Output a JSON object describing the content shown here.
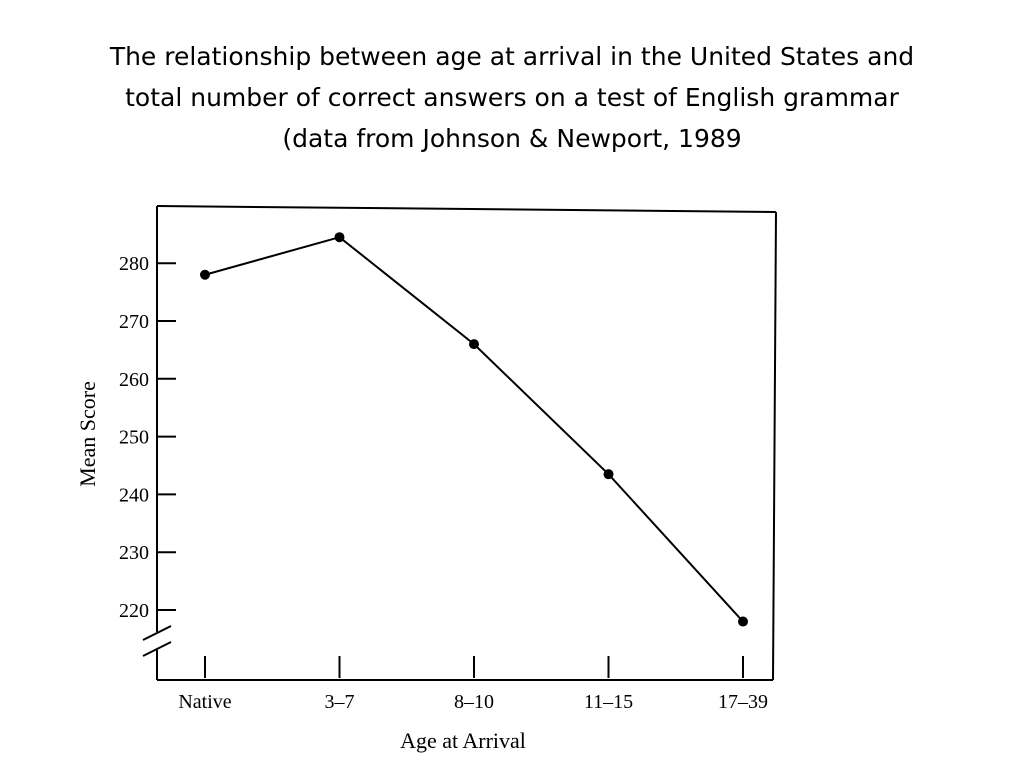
{
  "slide": {
    "title_lines": [
      "The relationship between age at arrival in the United States and",
      "total number of correct answers on a test of English grammar",
      "(data from Johnson & Newport, 1989"
    ]
  },
  "chart_data": {
    "type": "line",
    "title": "",
    "xlabel": "Age at Arrival",
    "ylabel": "Mean Score",
    "categories": [
      "Native",
      "3–7",
      "8–10",
      "11–15",
      "17–39"
    ],
    "values": [
      278,
      284.5,
      266,
      243.5,
      218
    ],
    "ylim": [
      210,
      290
    ],
    "yticks": [
      220,
      230,
      240,
      250,
      260,
      270,
      280
    ],
    "y_axis_break": true,
    "grid": false,
    "legend": "none",
    "line_color": "#000000",
    "marker": "filled-circle"
  }
}
